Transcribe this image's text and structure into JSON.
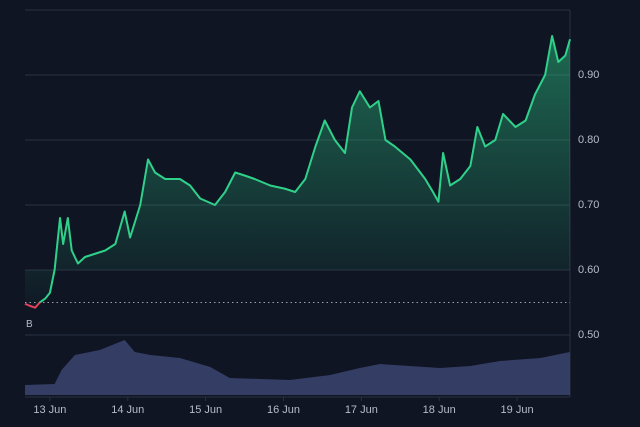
{
  "chart_data": {
    "type": "line",
    "x": [
      12.68,
      12.74,
      12.81,
      12.87,
      12.94,
      13.0,
      13.06,
      13.13,
      13.17,
      13.23,
      13.28,
      13.36,
      13.45,
      13.58,
      13.71,
      13.84,
      13.96,
      14.03,
      14.16,
      14.26,
      14.35,
      14.48,
      14.67,
      14.8,
      14.93,
      15.12,
      15.25,
      15.38,
      15.51,
      15.63,
      15.83,
      16.02,
      16.15,
      16.28,
      16.41,
      16.53,
      16.66,
      16.79,
      16.88,
      16.98,
      17.11,
      17.22,
      17.31,
      17.43,
      17.63,
      17.82,
      17.92,
      17.99,
      18.05,
      18.14,
      18.27,
      18.4,
      18.49,
      18.59,
      18.72,
      18.82,
      18.98,
      19.11,
      19.23,
      19.36,
      19.45,
      19.53,
      19.62,
      19.68
    ],
    "series": [
      {
        "color": "#2fd18a",
        "below_color": "#e0415a",
        "values": [
          0.548,
          0.545,
          0.542,
          0.55,
          0.556,
          0.565,
          0.6,
          0.68,
          0.64,
          0.68,
          0.63,
          0.61,
          0.62,
          0.625,
          0.63,
          0.64,
          0.69,
          0.65,
          0.7,
          0.77,
          0.75,
          0.74,
          0.74,
          0.73,
          0.71,
          0.7,
          0.72,
          0.75,
          0.745,
          0.74,
          0.73,
          0.725,
          0.72,
          0.74,
          0.79,
          0.83,
          0.8,
          0.78,
          0.85,
          0.875,
          0.85,
          0.86,
          0.8,
          0.79,
          0.77,
          0.74,
          0.72,
          0.705,
          0.78,
          0.73,
          0.74,
          0.76,
          0.82,
          0.79,
          0.8,
          0.84,
          0.82,
          0.83,
          0.87,
          0.9,
          0.96,
          0.92,
          0.93,
          0.955
        ]
      }
    ],
    "baseline": 0.55,
    "baseline_label": "B",
    "volume": {
      "color": "#3b4470",
      "x": [
        12.68,
        13.06,
        13.15,
        13.32,
        13.64,
        13.96,
        14.09,
        14.29,
        14.67,
        15.06,
        15.31,
        16.08,
        16.6,
        16.98,
        17.24,
        18.01,
        18.4,
        18.78,
        19.3,
        19.68
      ],
      "values": [
        10,
        11,
        25,
        40,
        45,
        55,
        43,
        40,
        37,
        28,
        17,
        15,
        20,
        27,
        31,
        27,
        29,
        34,
        37,
        43
      ],
      "ylim": [
        0,
        60
      ]
    },
    "xlim": [
      12.68,
      19.68
    ],
    "xticks": [
      {
        "value": 13,
        "label": "13 Jun"
      },
      {
        "value": 14,
        "label": "14 Jun"
      },
      {
        "value": 15,
        "label": "15 Jun"
      },
      {
        "value": 16,
        "label": "16 Jun"
      },
      {
        "value": 17,
        "label": "17 Jun"
      },
      {
        "value": 18,
        "label": "18 Jun"
      },
      {
        "value": 19,
        "label": "19 Jun"
      }
    ],
    "ylim": [
      0.5,
      1.0
    ],
    "yticks": [
      {
        "value": 0.5,
        "label": "0.50"
      },
      {
        "value": 0.6,
        "label": "0.60"
      },
      {
        "value": 0.7,
        "label": "0.70"
      },
      {
        "value": 0.8,
        "label": "0.80"
      },
      {
        "value": 0.9,
        "label": "0.90"
      }
    ],
    "grid": true
  }
}
